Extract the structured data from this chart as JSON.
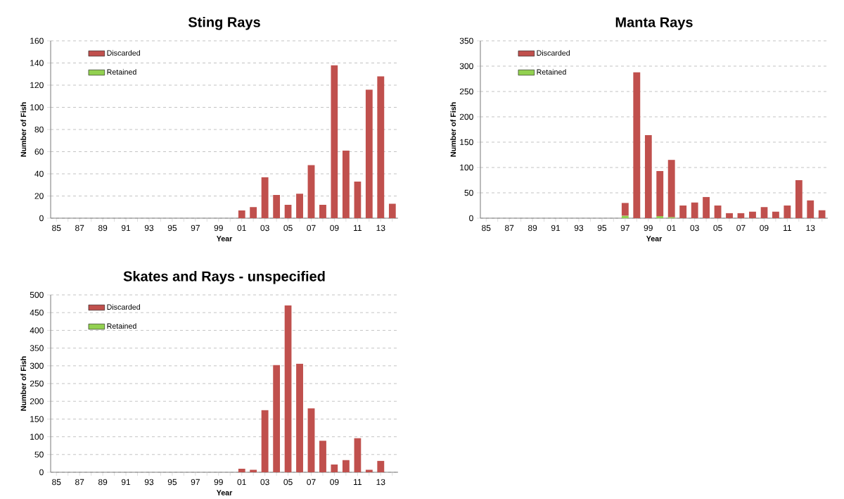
{
  "chart_data": [
    {
      "type": "bar",
      "stacked": true,
      "title": "Sting Rays",
      "xlabel": "Year",
      "ylabel": "Number of Fish",
      "categories": [
        "85",
        null,
        "87",
        null,
        "89",
        null,
        "91",
        null,
        "93",
        null,
        "95",
        null,
        "97",
        null,
        "99",
        null,
        "01",
        null,
        "03",
        null,
        "05",
        null,
        "07",
        null,
        "09",
        null,
        "11",
        null,
        "13",
        null
      ],
      "series": [
        {
          "name": "Retained",
          "color": "#92d050",
          "values": [
            null,
            null,
            null,
            null,
            null,
            null,
            null,
            null,
            null,
            null,
            null,
            null,
            null,
            null,
            null,
            null,
            null,
            null,
            null,
            null,
            null,
            null,
            null,
            null,
            null,
            null,
            null,
            null,
            null,
            null
          ]
        },
        {
          "name": "Discarded",
          "color": "#c0504d",
          "values": [
            null,
            null,
            null,
            null,
            null,
            null,
            null,
            null,
            null,
            null,
            null,
            null,
            null,
            null,
            null,
            null,
            7,
            10,
            37,
            21,
            12,
            22,
            48,
            12,
            138,
            61,
            33,
            116,
            128,
            13
          ]
        }
      ],
      "ylim": [
        0,
        160
      ],
      "yticks": [
        0,
        20,
        40,
        60,
        80,
        100,
        120,
        140,
        160
      ],
      "grid": "y",
      "legend": "top left"
    },
    {
      "type": "bar",
      "stacked": true,
      "title": "Manta Rays",
      "xlabel": "Year",
      "ylabel": "Number of Fish",
      "categories": [
        "85",
        null,
        "87",
        null,
        "89",
        null,
        "91",
        null,
        "93",
        null,
        "95",
        null,
        "97",
        null,
        "99",
        null,
        "01",
        null,
        "03",
        null,
        "05",
        null,
        "07",
        null,
        "09",
        null,
        "11",
        null,
        "13",
        null
      ],
      "series": [
        {
          "name": "Retained",
          "color": "#92d050",
          "values": [
            null,
            null,
            null,
            null,
            null,
            null,
            null,
            null,
            null,
            null,
            null,
            null,
            5,
            null,
            null,
            4,
            2,
            null,
            null,
            null,
            null,
            null,
            null,
            null,
            null,
            null,
            null,
            null,
            null,
            null
          ]
        },
        {
          "name": "Discarded",
          "color": "#c0504d",
          "values": [
            null,
            null,
            null,
            null,
            null,
            null,
            null,
            null,
            null,
            null,
            null,
            null,
            25,
            288,
            164,
            89,
            113,
            25,
            31,
            42,
            25,
            10,
            10,
            13,
            22,
            13,
            25,
            75,
            35,
            16
          ]
        }
      ],
      "ylim": [
        0,
        350
      ],
      "yticks": [
        0,
        50,
        100,
        150,
        200,
        250,
        300,
        350
      ],
      "grid": "y",
      "legend": "top left"
    },
    {
      "type": "bar",
      "stacked": true,
      "title": "Skates and Rays - unspecified",
      "xlabel": "Year",
      "ylabel": "Number of Fish",
      "categories": [
        "85",
        null,
        "87",
        null,
        "89",
        null,
        "91",
        null,
        "93",
        null,
        "95",
        null,
        "97",
        null,
        "99",
        null,
        "01",
        null,
        "03",
        null,
        "05",
        null,
        "07",
        null,
        "09",
        null,
        "11",
        null,
        "13",
        null
      ],
      "series": [
        {
          "name": "Retained",
          "color": "#92d050",
          "values": [
            null,
            null,
            null,
            null,
            null,
            null,
            null,
            null,
            null,
            null,
            null,
            null,
            null,
            null,
            null,
            null,
            null,
            null,
            null,
            null,
            null,
            null,
            null,
            null,
            null,
            null,
            null,
            null,
            null,
            null
          ]
        },
        {
          "name": "Discarded",
          "color": "#c0504d",
          "values": [
            null,
            null,
            null,
            null,
            null,
            null,
            null,
            null,
            null,
            null,
            null,
            null,
            null,
            null,
            null,
            null,
            10,
            7,
            175,
            302,
            470,
            306,
            180,
            89,
            22,
            34,
            96,
            7,
            32,
            null
          ]
        }
      ],
      "ylim": [
        0,
        500
      ],
      "yticks": [
        0,
        50,
        100,
        150,
        200,
        250,
        300,
        350,
        400,
        450,
        500
      ],
      "grid": "y",
      "legend": "top left"
    }
  ]
}
